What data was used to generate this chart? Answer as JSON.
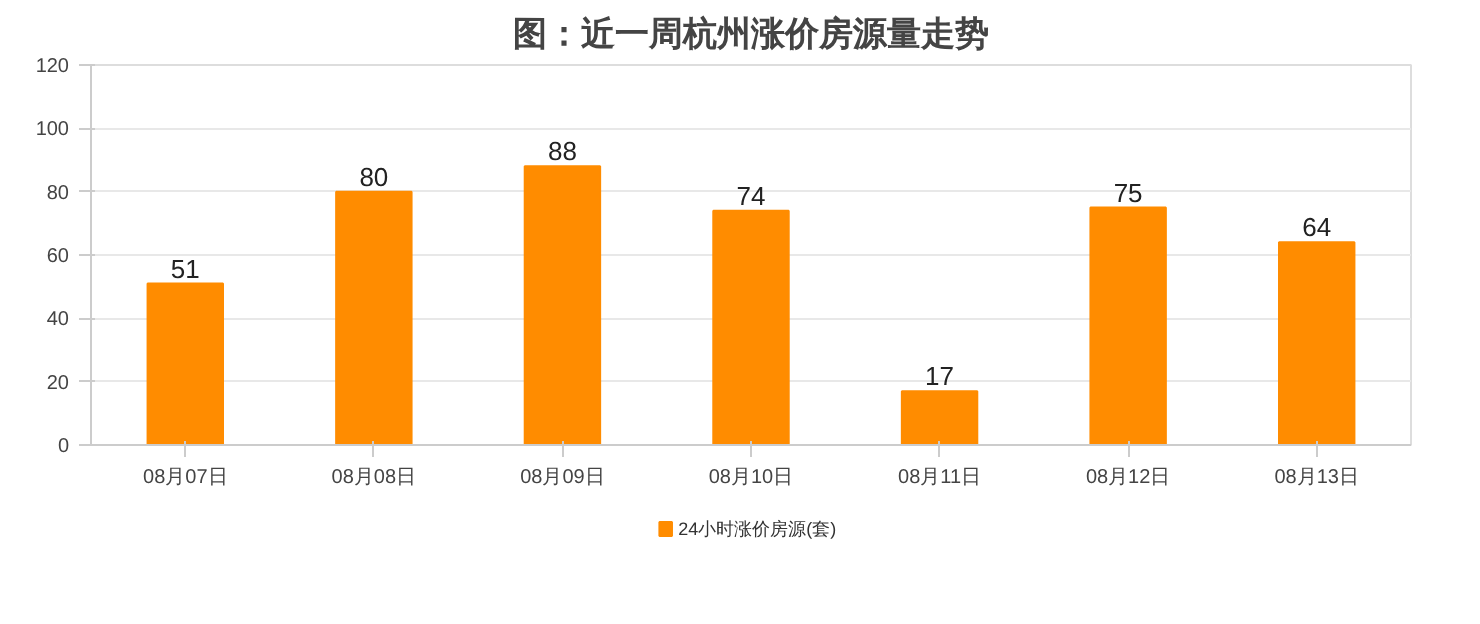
{
  "chart_data": {
    "type": "bar",
    "title": "图：近一周杭州涨价房源量走势",
    "categories": [
      "08月07日",
      "08月08日",
      "08月09日",
      "08月10日",
      "08月11日",
      "08月12日",
      "08月13日"
    ],
    "series": [
      {
        "name": "24小时涨价房源(套)",
        "color": "#ff8c00",
        "values": [
          51,
          80,
          88,
          74,
          17,
          75,
          64
        ]
      }
    ],
    "ylim": [
      0,
      120
    ],
    "yticks": [
      0,
      20,
      40,
      60,
      80,
      100,
      120
    ],
    "grid": "y",
    "legend": "bottom",
    "data_labels": true
  }
}
